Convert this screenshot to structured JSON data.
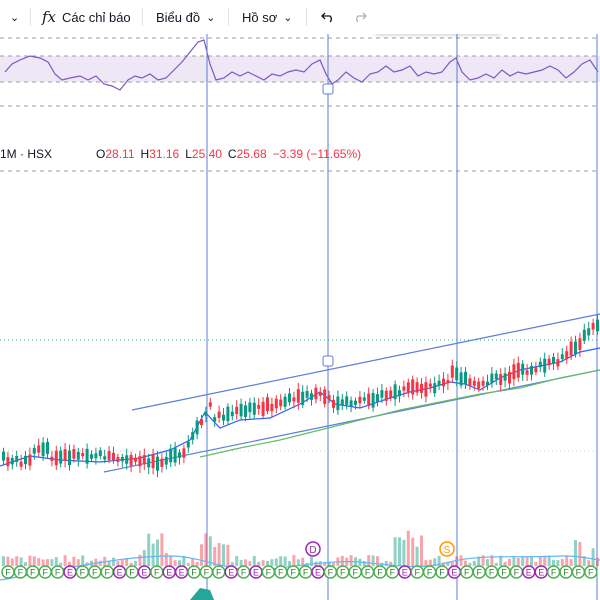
{
  "toolbar": {
    "indicators_label": "Các chỉ báo",
    "chart_type_label": "Biểu đồ",
    "profile_label": "Hồ sơ",
    "icons": [
      "chevron-down-icon",
      "function-icon",
      "undo-icon",
      "redo-icon",
      "drag-handle-icon",
      "trend-line-icon",
      "vertical-line-icon",
      "horizontal-ray-icon"
    ]
  },
  "legend": {
    "symbol": "1M · HSX",
    "open_label": "O",
    "open": "28.11",
    "high_label": "H",
    "high": "31.16",
    "low_label": "L",
    "low": "25.40",
    "close_label": "C",
    "close": "25.68",
    "change": "−3.39 (−11.65%)"
  },
  "markers": {
    "dividend": "D",
    "split": "S",
    "earnings": "E",
    "financial": "F"
  },
  "colors": {
    "up": "#089981",
    "down": "#f23645",
    "rsi_line": "#7e57c2",
    "rsi_band": "#ede7f6",
    "trend": "#5b7fd6",
    "ma_blue": "#2962ff",
    "ma_green": "#4caf50"
  }
}
